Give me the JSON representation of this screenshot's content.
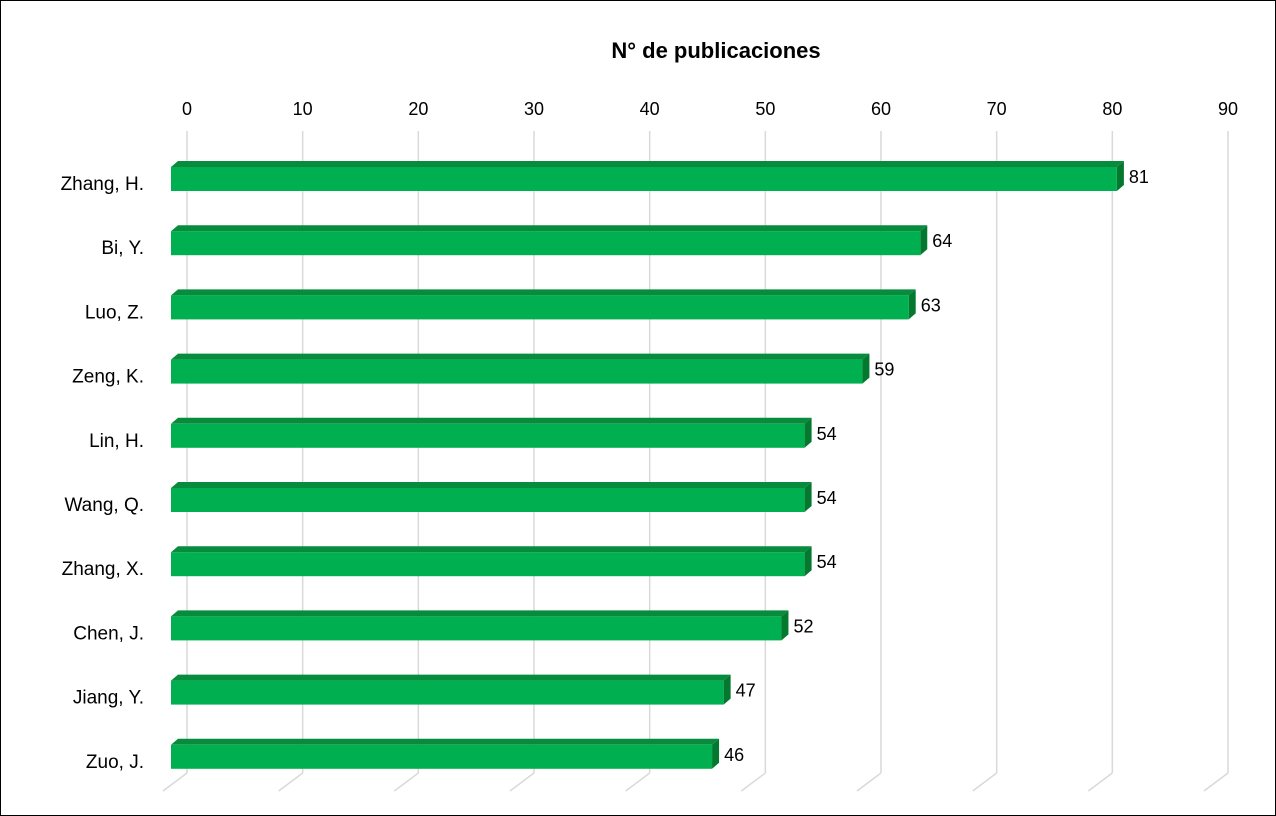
{
  "chart_data": {
    "type": "bar",
    "orientation": "horizontal",
    "title": "N° de publicaciones",
    "categories": [
      "Zhang, H.",
      "Bi, Y.",
      "Luo, Z.",
      "Zeng, K.",
      "Lin, H.",
      "Wang, Q.",
      "Zhang, X.",
      "Chen, J.",
      "Jiang, Y.",
      "Zuo, J."
    ],
    "values": [
      81,
      64,
      63,
      59,
      54,
      54,
      54,
      52,
      47,
      46
    ],
    "xlim": [
      0,
      90
    ],
    "xticks": [
      0,
      10,
      20,
      30,
      40,
      50,
      60,
      70,
      80,
      90
    ],
    "xaxis_position": "top",
    "grid": true,
    "data_labels": true,
    "legend": "none",
    "style": "3d",
    "colors": {
      "bar_front": "#00b050",
      "bar_top": "#078c3e",
      "bar_side": "#05782f",
      "grid": "#d9d9d9"
    }
  }
}
